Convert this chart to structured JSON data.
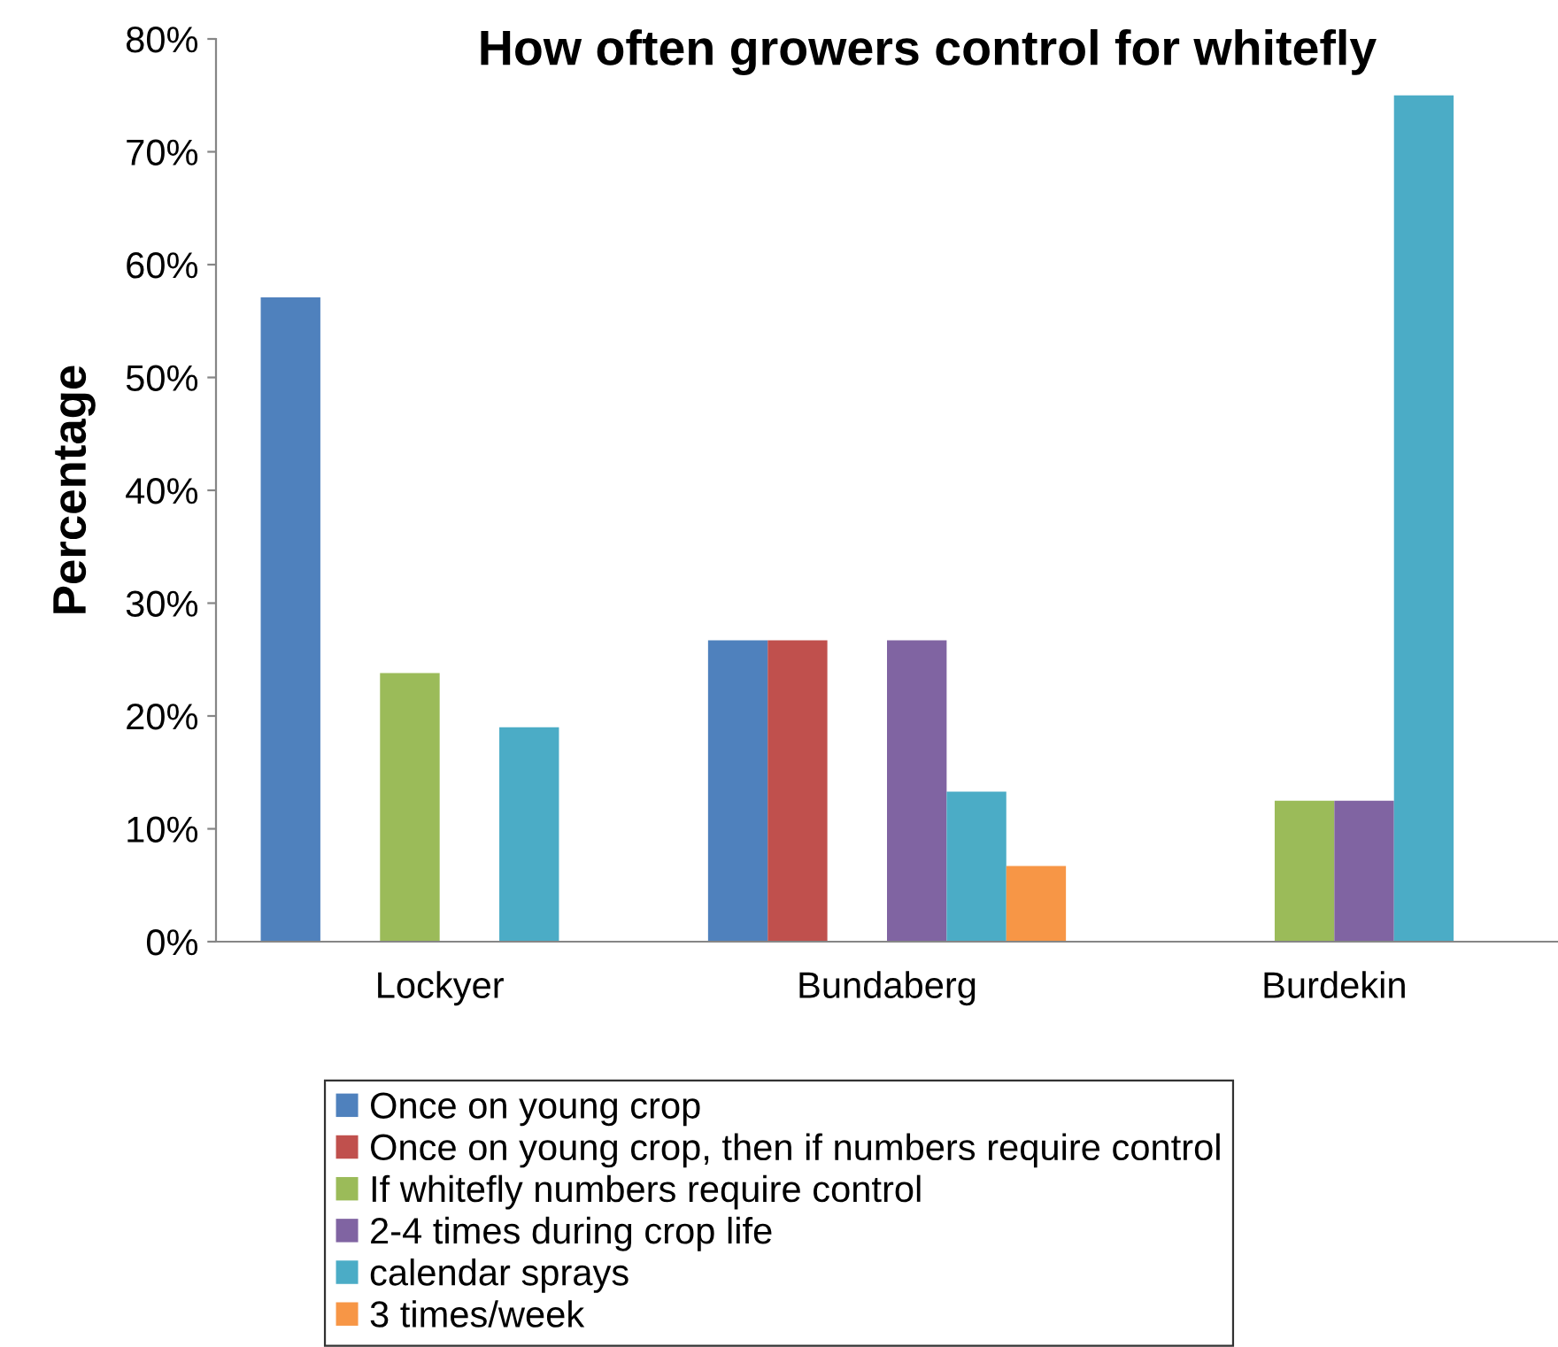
{
  "chart_data": {
    "type": "bar",
    "title": "How often growers control for whitefly",
    "ylabel": "Percentage",
    "categories": [
      "Lockyer",
      "Bundaberg",
      "Burdekin"
    ],
    "series": [
      {
        "name": "Once on young crop",
        "color": "#4f81bd",
        "values": [
          57.1,
          26.7,
          null
        ]
      },
      {
        "name": "Once on young crop, then if numbers require control",
        "color": "#c0504d",
        "values": [
          null,
          26.7,
          null
        ]
      },
      {
        "name": "If whitefly numbers require control",
        "color": "#9bbb59",
        "values": [
          23.8,
          null,
          12.5
        ]
      },
      {
        "name": "2-4 times during crop life",
        "color": "#8064a2",
        "values": [
          null,
          26.7,
          12.5
        ]
      },
      {
        "name": "calendar sprays",
        "color": "#4bacc6",
        "values": [
          19.0,
          13.3,
          75.0
        ]
      },
      {
        "name": "3 times/week",
        "color": "#f79646",
        "values": [
          null,
          6.7,
          null
        ]
      }
    ],
    "ylim": [
      0,
      80
    ],
    "yticks": [
      {
        "value": 0,
        "label": "0%"
      },
      {
        "value": 10,
        "label": "10%"
      },
      {
        "value": 20,
        "label": "20%"
      },
      {
        "value": 30,
        "label": "30%"
      },
      {
        "value": 40,
        "label": "40%"
      },
      {
        "value": 50,
        "label": "50%"
      },
      {
        "value": 60,
        "label": "60%"
      },
      {
        "value": 70,
        "label": "70%"
      },
      {
        "value": 80,
        "label": "80%"
      }
    ],
    "grid": false,
    "legend": "bottom"
  }
}
